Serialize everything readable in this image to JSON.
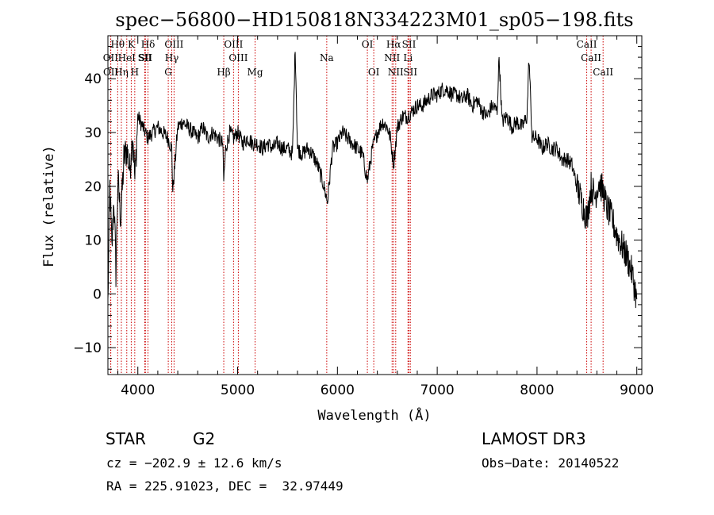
{
  "chart_data": {
    "type": "line",
    "title": "spec−56800−HD150818N334223M01_sp05−198.fits",
    "xlabel": "Wavelength (Å)",
    "ylabel": "Flux (relative)",
    "xlim": [
      3700,
      9050
    ],
    "ylim": [
      -15,
      48
    ],
    "xticks": [
      4000,
      5000,
      6000,
      7000,
      8000,
      9000
    ],
    "yticks": [
      -10,
      0,
      10,
      20,
      30,
      40
    ],
    "ytick_labels": [
      "−10",
      "0",
      "10",
      "20",
      "30",
      "40"
    ],
    "grid": false,
    "series": [
      {
        "color": "#000000",
        "x": [
          3700,
          3720,
          3740,
          3760,
          3780,
          3800,
          3830,
          3860,
          3890,
          3920,
          3950,
          3970,
          4000,
          4050,
          4100,
          4150,
          4200,
          4250,
          4300,
          4340,
          4350,
          4400,
          4450,
          4500,
          4550,
          4600,
          4650,
          4700,
          4750,
          4800,
          4850,
          4861,
          4880,
          4920,
          4960,
          5000,
          5050,
          5100,
          5150,
          5200,
          5250,
          5300,
          5350,
          5400,
          5450,
          5500,
          5550,
          5577,
          5600,
          5650,
          5700,
          5750,
          5800,
          5850,
          5890,
          5900,
          5950,
          6000,
          6050,
          6100,
          6150,
          6200,
          6250,
          6300,
          6350,
          6400,
          6450,
          6500,
          6530,
          6563,
          6600,
          6650,
          6700,
          6750,
          6800,
          6850,
          6900,
          6950,
          7000,
          7050,
          7100,
          7150,
          7200,
          7250,
          7300,
          7350,
          7400,
          7450,
          7500,
          7550,
          7600,
          7620,
          7650,
          7700,
          7750,
          7800,
          7850,
          7900,
          7920,
          7950,
          8000,
          8050,
          8100,
          8150,
          8200,
          8250,
          8300,
          8350,
          8400,
          8450,
          8500,
          8542,
          8580,
          8620,
          8662,
          8700,
          8750,
          8800,
          8850,
          8900,
          8950,
          9000
        ],
        "y": [
          -2,
          20,
          8,
          18,
          4,
          21,
          14,
          25,
          27,
          23,
          30,
          21,
          33,
          31,
          29,
          30,
          31,
          30,
          29,
          27,
          19,
          31,
          32,
          31,
          30,
          29,
          31,
          29,
          30,
          29,
          28,
          21,
          27,
          30,
          29,
          30,
          28,
          29,
          28,
          28,
          27,
          28,
          27,
          28,
          27,
          27,
          26,
          46,
          27,
          26,
          27,
          26,
          24,
          21,
          18,
          17,
          27,
          28,
          30,
          29,
          28,
          27,
          26,
          21,
          27,
          30,
          32,
          31,
          29,
          24,
          31,
          33,
          33,
          34,
          35,
          35,
          36,
          37,
          37,
          38,
          38,
          37,
          37,
          36,
          37,
          35,
          36,
          34,
          33,
          35,
          34,
          44,
          32,
          33,
          31,
          32,
          31,
          33,
          44,
          29,
          29,
          27,
          28,
          27,
          27,
          25,
          25,
          24,
          20,
          17,
          14,
          20,
          18,
          21,
          19,
          16,
          14,
          11,
          9,
          7,
          4,
          -1
        ]
      }
    ],
    "line_markers": [
      {
        "label": "Hθ",
        "x": 3798,
        "row": 0
      },
      {
        "label": "OII",
        "x": 3727,
        "row": 1
      },
      {
        "label": "OII",
        "x": 3729,
        "row": 2
      },
      {
        "label": "HeI",
        "x": 3889,
        "row": 1
      },
      {
        "label": "Hη",
        "x": 3835,
        "row": 2
      },
      {
        "label": "K",
        "x": 3934,
        "row": 0
      },
      {
        "label": "SII",
        "x": 4069,
        "row": 1
      },
      {
        "label": "H",
        "x": 3969,
        "row": 2
      },
      {
        "label": "Hδ",
        "x": 4102,
        "row": 0
      },
      {
        "label": "SII",
        "x": 4076,
        "row": 1
      },
      {
        "label": "OIII",
        "x": 4363,
        "row": 0
      },
      {
        "label": "Hγ",
        "x": 4340,
        "row": 1
      },
      {
        "label": "G",
        "x": 4305,
        "row": 2
      },
      {
        "label": "OIII",
        "x": 4959,
        "row": 0
      },
      {
        "label": "OIII",
        "x": 5007,
        "row": 1
      },
      {
        "label": "Hβ",
        "x": 4861,
        "row": 2
      },
      {
        "label": "Mg",
        "x": 5175,
        "row": 2
      },
      {
        "label": "Na",
        "x": 5893,
        "row": 1
      },
      {
        "label": "OI",
        "x": 6300,
        "row": 0
      },
      {
        "label": "OI",
        "x": 6364,
        "row": 2
      },
      {
        "label": "Hα",
        "x": 6563,
        "row": 0
      },
      {
        "label": "NII",
        "x": 6548,
        "row": 1
      },
      {
        "label": "NII",
        "x": 6584,
        "row": 2
      },
      {
        "label": "SII",
        "x": 6717,
        "row": 0
      },
      {
        "label": "Li",
        "x": 6707,
        "row": 1
      },
      {
        "label": "SII",
        "x": 6731,
        "row": 2
      },
      {
        "label": "CaII",
        "x": 8498,
        "row": 0
      },
      {
        "label": "CaII",
        "x": 8542,
        "row": 1
      },
      {
        "label": "CaII",
        "x": 8662,
        "row": 2
      }
    ],
    "line_marker_color": "#cc0000"
  },
  "footer": {
    "object_class": "STAR",
    "subclass": "G2",
    "survey": "LAMOST DR3",
    "cz": "cz = −202.9 ± 12.6 km/s",
    "obs_date": "Obs−Date: 20140522",
    "coords": "RA = 225.91023, DEC =  32.97449"
  }
}
